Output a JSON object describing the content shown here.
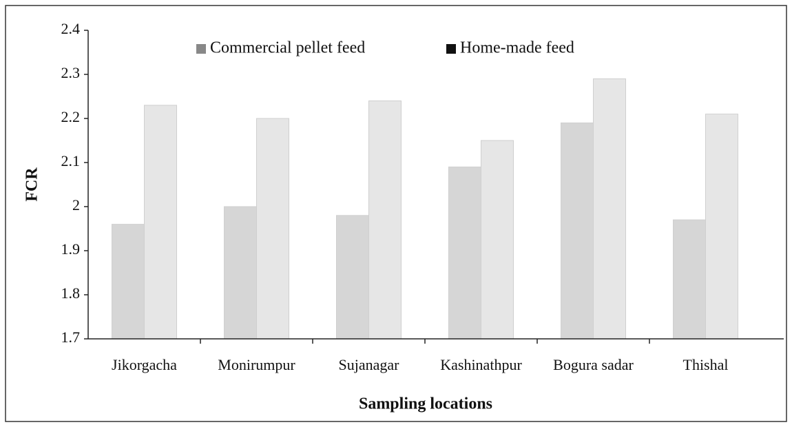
{
  "chart_data": {
    "type": "bar",
    "categories": [
      "Jikorgacha",
      "Monirumpur",
      "Sujanagar",
      "Kashinathpur",
      "Bogura sadar",
      "Thishal"
    ],
    "series": [
      {
        "name": "Commercial pellet feed",
        "color": "#d6d6d6",
        "values": [
          1.96,
          2.0,
          1.98,
          2.09,
          2.19,
          1.97
        ]
      },
      {
        "name": "Home-made feed",
        "color": "#e6e6e6",
        "values": [
          2.23,
          2.2,
          2.24,
          2.15,
          2.29,
          2.21
        ]
      }
    ],
    "y_label": "FCR",
    "x_label": "Sampling locations",
    "ylim": [
      1.7,
      2.4
    ],
    "yticks": [
      1.7,
      1.8,
      1.9,
      2,
      2.1,
      2.2,
      2.3,
      2.4
    ],
    "grid": false,
    "legend": "top"
  }
}
